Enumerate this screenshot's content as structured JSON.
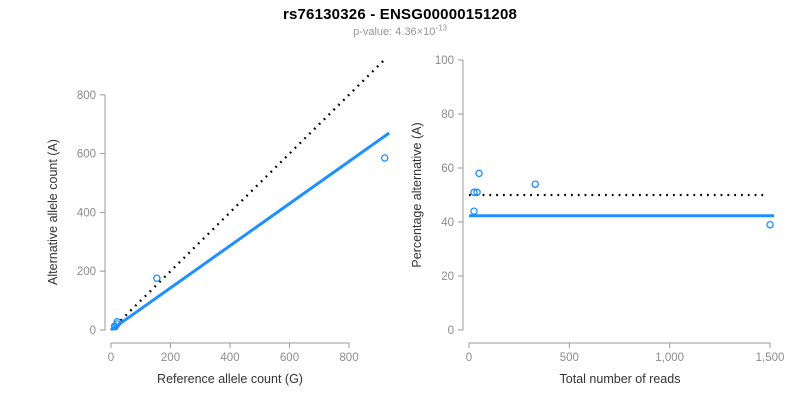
{
  "header": {
    "title": "rs76130326 - ENSG00000151208",
    "subtitle": {
      "prefix": "p-value: 4.36×10",
      "exponent": "-13"
    }
  },
  "colors": {
    "accent_blue": "#1E90FF",
    "dotted_black": "#000000",
    "axis_gray": "#999999",
    "tick_label_gray": "#8c8c8c",
    "axis_title_dark": "#333333",
    "subtitle_gray": "#969696",
    "title_black": "#000000",
    "background": "#ffffff"
  },
  "chart_data": [
    {
      "type": "scatter",
      "name": "allele-counts-scatter",
      "title": "",
      "xlabel": "Reference allele count (G)",
      "ylabel": "Alternative allele count (A)",
      "xlim": [
        0,
        950
      ],
      "ylim": [
        0,
        950
      ],
      "xticks": [
        0,
        200,
        400,
        600,
        800
      ],
      "xtick_labels": [
        "0",
        "200",
        "400",
        "600",
        "800"
      ],
      "yticks": [
        0,
        200,
        400,
        600,
        800
      ],
      "ytick_labels": [
        "0",
        "200",
        "400",
        "600",
        "800"
      ],
      "grid": false,
      "legend": false,
      "point_color": "#1E90FF",
      "points": [
        [
          12,
          13
        ],
        [
          14,
          11
        ],
        [
          20,
          20
        ],
        [
          21,
          28
        ],
        [
          154,
          176
        ],
        [
          920,
          585
        ]
      ],
      "lines": [
        {
          "name": "identity-line",
          "style": "dotted",
          "color": "#000000",
          "width": 2.3,
          "x1": 0,
          "y1": 0,
          "x2": 925,
          "y2": 925
        },
        {
          "name": "fit-line",
          "style": "solid",
          "color": "#1E90FF",
          "width": 3,
          "x1": 0,
          "y1": 0,
          "x2": 935,
          "y2": 670
        }
      ]
    },
    {
      "type": "scatter",
      "name": "percentage-vs-reads-scatter",
      "title": "",
      "xlabel": "Total number of reads",
      "ylabel": "Percentage alternative (A)",
      "xlim": [
        0,
        1550
      ],
      "ylim": [
        0,
        100
      ],
      "xticks": [
        0,
        500,
        1000,
        1500
      ],
      "xtick_labels": [
        "0",
        "500",
        "1,000",
        "1,500"
      ],
      "yticks": [
        0,
        20,
        40,
        60,
        80,
        100
      ],
      "ytick_labels": [
        "0",
        "20",
        "40",
        "60",
        "80",
        "100"
      ],
      "grid": false,
      "legend": false,
      "point_color": "#1E90FF",
      "points": [
        [
          25,
          44
        ],
        [
          25,
          51
        ],
        [
          40,
          51
        ],
        [
          50,
          58
        ],
        [
          330,
          54
        ],
        [
          1500,
          39
        ]
      ],
      "lines": [
        {
          "name": "expected-percentage-line",
          "style": "dotted",
          "color": "#000000",
          "width": 2.3,
          "x1": 0,
          "y1": 50,
          "x2": 1490,
          "y2": 50
        },
        {
          "name": "observed-percentage-line",
          "style": "solid",
          "color": "#1E90FF",
          "width": 3,
          "x1": 0,
          "y1": 42.3,
          "x2": 1520,
          "y2": 42.3
        }
      ]
    }
  ]
}
